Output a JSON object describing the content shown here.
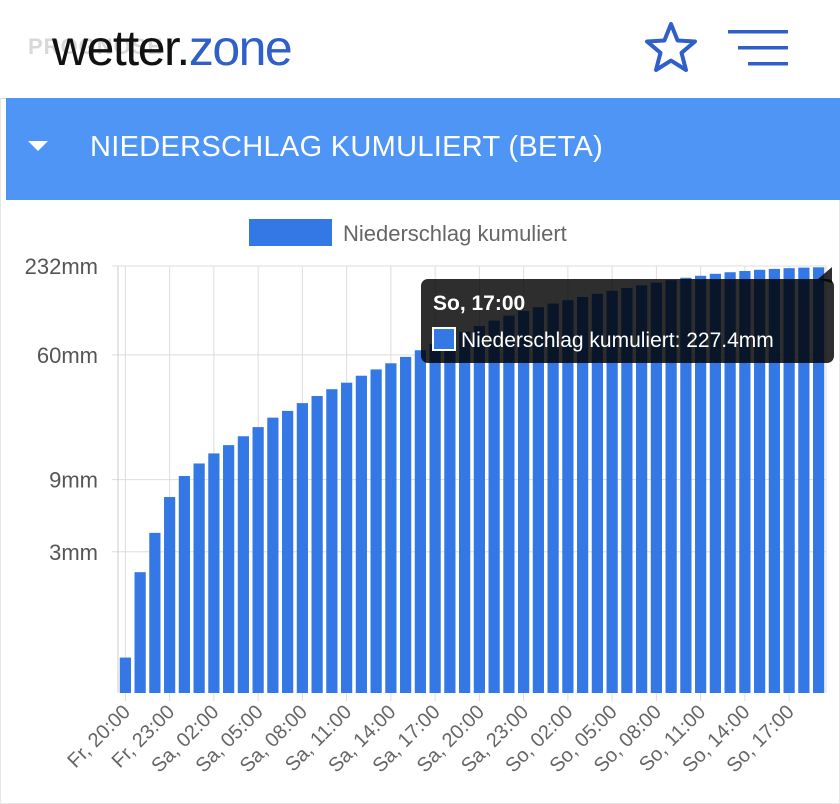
{
  "header": {
    "ghost_text": "PROGNOSE",
    "logo": {
      "part1": "wetter",
      "part2": ".",
      "part3": "zone"
    },
    "favorite_icon": "star-outline-icon",
    "menu_icon": "hamburger-menu-icon",
    "brand_color": "#2f5fc9"
  },
  "section": {
    "title": "NIEDERSCHLAG KUMULIERT (BETA)",
    "caret_icon": "caret-down-icon",
    "color": "#4f95f6"
  },
  "chart_data": {
    "type": "bar",
    "title": "",
    "xlabel": "",
    "ylabel": "",
    "y_scale": "log",
    "y_ticks": [
      {
        "value": 3,
        "label": "3mm"
      },
      {
        "value": 9,
        "label": "9mm"
      },
      {
        "value": 60,
        "label": "60mm"
      },
      {
        "value": 232,
        "label": "232mm"
      }
    ],
    "ylim": [
      0.35,
      232
    ],
    "x_tick_labels": [
      "Fr, 20:00",
      "Fr, 23:00",
      "Sa, 02:00",
      "Sa, 05:00",
      "Sa, 08:00",
      "Sa, 11:00",
      "Sa, 14:00",
      "Sa, 17:00",
      "Sa, 20:00",
      "Sa, 23:00",
      "So, 02:00",
      "So, 05:00",
      "So, 08:00",
      "So, 11:00",
      "So, 14:00",
      "So, 17:00"
    ],
    "tick_every": 3,
    "series": [
      {
        "name": "Niederschlag kumuliert",
        "color": "#3478e6",
        "values": [
          0.6,
          2.2,
          4.0,
          6.9,
          9.5,
          11.5,
          13.4,
          15.2,
          17.4,
          20.0,
          23.1,
          25.6,
          28.8,
          32.1,
          35.6,
          39.3,
          43.7,
          48.1,
          52.8,
          58.2,
          64.4,
          70.9,
          77.8,
          85.3,
          93.0,
          101,
          109,
          117,
          124,
          131,
          138,
          145,
          152,
          159,
          166,
          173,
          180,
          187,
          194,
          200,
          206,
          211,
          215,
          219,
          222,
          224.5,
          226.3,
          227.4
        ]
      }
    ],
    "legend": {
      "position": "top",
      "label": "Niederschlag kumuliert"
    },
    "grid": true,
    "tooltip": {
      "title": "So, 17:00",
      "label": "Niederschlag kumuliert: 227.4mm"
    }
  }
}
